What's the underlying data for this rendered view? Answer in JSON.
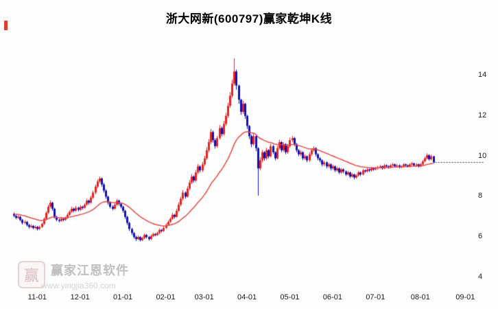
{
  "title": "浙大网新(600797)赢家乾坤K线",
  "watermark": {
    "logo_char": "赢",
    "brand": "赢家江恩软件",
    "url": "www.yingjia360.com"
  },
  "chart_data": {
    "type": "candlestick",
    "name": "浙大网新",
    "symbol": "600797",
    "title": "浙大网新(600797)赢家乾坤K线",
    "xlabel": "",
    "ylabel": "",
    "ylim": [
      4,
      15.8
    ],
    "grid": false,
    "legend_position": "none",
    "y_ticks": [
      4,
      6,
      8,
      10,
      12,
      14
    ],
    "x_ticks": [
      {
        "label": "11-01",
        "i": 11
      },
      {
        "label": "12-01",
        "i": 31
      },
      {
        "label": "01-01",
        "i": 51
      },
      {
        "label": "02-01",
        "i": 71
      },
      {
        "label": "03-01",
        "i": 89
      },
      {
        "label": "04-01",
        "i": 109
      },
      {
        "label": "05-01",
        "i": 129
      },
      {
        "label": "06-01",
        "i": 149
      },
      {
        "label": "07-01",
        "i": 169
      },
      {
        "label": "08-01",
        "i": 190
      },
      {
        "label": "09-01",
        "i": 211
      }
    ],
    "last_price_line": 9.7,
    "ma": {
      "type": "ema",
      "alpha": 0.07
    },
    "colors": {
      "up": "#e62222",
      "down": "#1111b0",
      "ma": "#e64848",
      "price_line": "#333333"
    },
    "candles": [
      [
        7.15,
        7.22,
        6.98,
        7.05
      ],
      [
        7.05,
        7.12,
        6.88,
        6.95
      ],
      [
        6.95,
        7.08,
        6.9,
        7
      ],
      [
        7,
        7.05,
        6.78,
        6.85
      ],
      [
        6.85,
        6.9,
        6.62,
        6.7
      ],
      [
        6.7,
        6.83,
        6.65,
        6.75
      ],
      [
        6.75,
        6.8,
        6.52,
        6.6
      ],
      [
        6.6,
        6.65,
        6.42,
        6.5
      ],
      [
        6.5,
        6.63,
        6.45,
        6.55
      ],
      [
        6.55,
        6.6,
        6.38,
        6.45
      ],
      [
        6.45,
        6.58,
        6.4,
        6.5
      ],
      [
        6.5,
        6.55,
        6.32,
        6.4
      ],
      [
        6.4,
        6.57,
        6.35,
        6.5
      ],
      [
        6.5,
        6.72,
        6.45,
        6.65
      ],
      [
        6.65,
        6.97,
        6.6,
        6.9
      ],
      [
        6.9,
        7.28,
        6.85,
        7.2
      ],
      [
        7.2,
        7.6,
        7.15,
        7.5
      ],
      [
        7.5,
        7.82,
        7.42,
        7.7
      ],
      [
        7.7,
        7.75,
        7.3,
        7.4
      ],
      [
        7.4,
        7.45,
        6.92,
        7
      ],
      [
        7,
        7.06,
        6.78,
        6.85
      ],
      [
        6.85,
        6.92,
        6.72,
        6.8
      ],
      [
        6.8,
        6.98,
        6.75,
        6.9
      ],
      [
        6.9,
        6.95,
        6.78,
        6.85
      ],
      [
        6.85,
        7.02,
        6.8,
        6.95
      ],
      [
        6.95,
        7.18,
        6.9,
        7.1
      ],
      [
        7.1,
        7.33,
        7.05,
        7.25
      ],
      [
        7.25,
        7.5,
        7.2,
        7.4
      ],
      [
        7.4,
        7.46,
        7.22,
        7.3
      ],
      [
        7.3,
        7.53,
        7.25,
        7.45
      ],
      [
        7.45,
        7.5,
        7.27,
        7.35
      ],
      [
        7.35,
        7.58,
        7.3,
        7.5
      ],
      [
        7.5,
        7.55,
        7.36,
        7.45
      ],
      [
        7.45,
        7.68,
        7.4,
        7.6
      ],
      [
        7.6,
        7.9,
        7.55,
        7.8
      ],
      [
        7.8,
        7.86,
        7.6,
        7.7
      ],
      [
        7.7,
        8.05,
        7.65,
        7.95
      ],
      [
        7.95,
        8.3,
        7.88,
        8.2
      ],
      [
        8.2,
        8.6,
        8.12,
        8.5
      ],
      [
        8.5,
        8.85,
        8.42,
        8.75
      ],
      [
        8.75,
        9,
        8.65,
        8.9
      ],
      [
        8.9,
        8.95,
        8.5,
        8.6
      ],
      [
        8.6,
        8.68,
        8.2,
        8.3
      ],
      [
        8.3,
        8.36,
        7.9,
        8
      ],
      [
        8,
        8.05,
        7.6,
        7.7
      ],
      [
        7.7,
        7.76,
        7.42,
        7.5
      ],
      [
        7.5,
        7.58,
        7.32,
        7.4
      ],
      [
        7.4,
        7.68,
        7.35,
        7.6
      ],
      [
        7.6,
        7.88,
        7.55,
        7.8
      ],
      [
        7.8,
        7.85,
        7.56,
        7.65
      ],
      [
        7.65,
        7.7,
        7.42,
        7.5
      ],
      [
        7.5,
        7.55,
        7.2,
        7.3
      ],
      [
        7.3,
        7.35,
        6.9,
        7
      ],
      [
        7,
        7.05,
        6.6,
        6.7
      ],
      [
        6.7,
        6.75,
        6.3,
        6.4
      ],
      [
        6.4,
        6.46,
        6.1,
        6.2
      ],
      [
        6.2,
        6.25,
        5.92,
        6
      ],
      [
        6,
        6.06,
        5.8,
        5.9
      ],
      [
        5.9,
        6.08,
        5.85,
        6
      ],
      [
        6,
        6.04,
        5.78,
        5.85
      ],
      [
        5.85,
        6.02,
        5.8,
        5.95
      ],
      [
        5.95,
        6.17,
        5.9,
        6.1
      ],
      [
        6.1,
        6.15,
        5.93,
        6
      ],
      [
        6,
        6.05,
        5.82,
        5.9
      ],
      [
        5.9,
        6.12,
        5.85,
        6.05
      ],
      [
        6.05,
        6.22,
        6,
        6.15
      ],
      [
        6.15,
        6.2,
        6.03,
        6.1
      ],
      [
        6.1,
        6.27,
        6.05,
        6.2
      ],
      [
        6.2,
        6.42,
        6.15,
        6.35
      ],
      [
        6.35,
        6.4,
        6.22,
        6.3
      ],
      [
        6.3,
        6.52,
        6.25,
        6.45
      ],
      [
        6.45,
        6.68,
        6.4,
        6.6
      ],
      [
        6.6,
        6.83,
        6.55,
        6.75
      ],
      [
        6.75,
        6.98,
        6.7,
        6.9
      ],
      [
        6.9,
        7.2,
        6.85,
        7.1
      ],
      [
        7.1,
        7.15,
        6.92,
        7
      ],
      [
        7,
        7.4,
        6.95,
        7.3
      ],
      [
        7.3,
        7.72,
        7.25,
        7.6
      ],
      [
        7.6,
        8,
        7.52,
        7.9
      ],
      [
        7.9,
        8.32,
        7.82,
        8.2
      ],
      [
        8.2,
        8.26,
        7.9,
        8
      ],
      [
        8,
        8.52,
        7.95,
        8.4
      ],
      [
        8.4,
        8.82,
        8.32,
        8.7
      ],
      [
        8.7,
        9.12,
        8.62,
        9
      ],
      [
        9,
        9.06,
        8.7,
        8.8
      ],
      [
        8.8,
        9.32,
        8.72,
        9.2
      ],
      [
        9.2,
        9.62,
        9.12,
        9.5
      ],
      [
        9.5,
        9.56,
        9.2,
        9.3
      ],
      [
        9.3,
        9.72,
        9.22,
        9.6
      ],
      [
        9.6,
        10.02,
        9.52,
        9.9
      ],
      [
        9.9,
        10.45,
        9.82,
        10.3
      ],
      [
        10.3,
        10.85,
        10.2,
        10.7
      ],
      [
        10.7,
        11.35,
        10.6,
        11.2
      ],
      [
        11.2,
        11.28,
        10.68,
        10.8
      ],
      [
        10.8,
        10.88,
        10.38,
        10.5
      ],
      [
        10.5,
        11,
        10.42,
        10.9
      ],
      [
        10.9,
        11.55,
        10.82,
        11.4
      ],
      [
        11.4,
        11.48,
        10.98,
        11.1
      ],
      [
        11.1,
        11.75,
        11.02,
        11.6
      ],
      [
        11.6,
        12.15,
        11.5,
        12
      ],
      [
        12,
        12.65,
        11.9,
        12.5
      ],
      [
        12.5,
        13.18,
        12.4,
        13
      ],
      [
        13,
        13.8,
        12.9,
        13.6
      ],
      [
        13.6,
        14.85,
        13.5,
        14.2
      ],
      [
        14.2,
        14.3,
        13.3,
        13.5
      ],
      [
        13.5,
        13.55,
        12.6,
        12.8
      ],
      [
        12.8,
        12.85,
        12.05,
        12.2
      ],
      [
        12.2,
        12.75,
        12.1,
        12.6
      ],
      [
        12.6,
        12.65,
        11.85,
        12
      ],
      [
        12,
        12.05,
        11.35,
        11.5
      ],
      [
        11.5,
        11.55,
        10.85,
        11
      ],
      [
        11,
        11.08,
        10.45,
        10.6
      ],
      [
        10.6,
        11.12,
        10.52,
        11
      ],
      [
        11,
        11.05,
        10.25,
        10.4
      ],
      [
        10.4,
        10.45,
        8.05,
        9.4
      ],
      [
        9.4,
        9.95,
        9.3,
        9.8
      ],
      [
        9.8,
        10.32,
        9.7,
        10.2
      ],
      [
        10.2,
        10.26,
        9.78,
        9.9
      ],
      [
        9.9,
        10.42,
        9.82,
        10.3
      ],
      [
        10.3,
        10.36,
        9.9,
        10
      ],
      [
        10,
        10.62,
        9.95,
        10.5
      ],
      [
        10.5,
        10.56,
        10.1,
        10.2
      ],
      [
        10.2,
        10.25,
        9.8,
        9.9
      ],
      [
        9.9,
        10.52,
        9.85,
        10.4
      ],
      [
        10.4,
        10.82,
        10.32,
        10.7
      ],
      [
        10.7,
        10.75,
        10.2,
        10.3
      ],
      [
        10.3,
        10.7,
        10.22,
        10.6
      ],
      [
        10.6,
        10.65,
        10.1,
        10.2
      ],
      [
        10.2,
        10.62,
        10.12,
        10.5
      ],
      [
        10.5,
        10.92,
        10.42,
        10.8
      ],
      [
        10.8,
        11,
        10.7,
        10.9
      ],
      [
        10.9,
        10.95,
        10.5,
        10.6
      ],
      [
        10.6,
        10.66,
        10.2,
        10.3
      ],
      [
        10.3,
        10.36,
        10,
        10.1
      ],
      [
        10.1,
        10.3,
        10.02,
        10.2
      ],
      [
        10.2,
        10.25,
        9.8,
        9.9
      ],
      [
        9.9,
        10.1,
        9.82,
        10
      ],
      [
        10,
        10.05,
        9.7,
        9.8
      ],
      [
        9.8,
        10.2,
        9.72,
        10.1
      ],
      [
        10.1,
        10.4,
        10.02,
        10.3
      ],
      [
        10.3,
        10.5,
        10.22,
        10.4
      ],
      [
        10.4,
        10.45,
        10,
        10.1
      ],
      [
        10.1,
        10.15,
        9.8,
        9.9
      ],
      [
        9.9,
        9.96,
        9.7,
        9.8
      ],
      [
        9.8,
        9.85,
        9.5,
        9.6
      ],
      [
        9.6,
        9.78,
        9.52,
        9.7
      ],
      [
        9.7,
        9.75,
        9.4,
        9.5
      ],
      [
        9.5,
        9.68,
        9.42,
        9.6
      ],
      [
        9.6,
        9.65,
        9.3,
        9.4
      ],
      [
        9.4,
        9.58,
        9.32,
        9.5
      ],
      [
        9.5,
        9.55,
        9.22,
        9.3
      ],
      [
        9.3,
        9.48,
        9.24,
        9.4
      ],
      [
        9.4,
        9.45,
        9.12,
        9.2
      ],
      [
        9.2,
        9.42,
        9.14,
        9.35
      ],
      [
        9.35,
        9.4,
        9.16,
        9.25
      ],
      [
        9.25,
        9.3,
        9.02,
        9.1
      ],
      [
        9.1,
        9.28,
        9.04,
        9.2
      ],
      [
        9.2,
        9.24,
        8.92,
        9
      ],
      [
        9,
        9.18,
        8.94,
        9.1
      ],
      [
        9.1,
        9.14,
        8.86,
        8.95
      ],
      [
        8.95,
        9.12,
        8.88,
        9.05
      ],
      [
        9.05,
        9.28,
        9,
        9.2
      ],
      [
        9.2,
        9.25,
        9.02,
        9.1
      ],
      [
        9.1,
        9.38,
        9.05,
        9.3
      ],
      [
        9.3,
        9.35,
        9.18,
        9.25
      ],
      [
        9.25,
        9.42,
        9.2,
        9.35
      ],
      [
        9.35,
        9.4,
        9.22,
        9.3
      ],
      [
        9.3,
        9.47,
        9.24,
        9.4
      ],
      [
        9.4,
        9.45,
        9.28,
        9.35
      ],
      [
        9.35,
        9.48,
        9.3,
        9.4
      ],
      [
        9.4,
        9.52,
        9.34,
        9.45
      ],
      [
        9.45,
        9.57,
        9.4,
        9.5
      ],
      [
        9.5,
        9.54,
        9.34,
        9.4
      ],
      [
        9.4,
        9.62,
        9.36,
        9.55
      ],
      [
        9.55,
        9.6,
        9.44,
        9.5
      ],
      [
        9.5,
        9.55,
        9.38,
        9.45
      ],
      [
        9.45,
        9.62,
        9.4,
        9.55
      ],
      [
        9.55,
        9.67,
        9.5,
        9.6
      ],
      [
        9.6,
        9.64,
        9.44,
        9.5
      ],
      [
        9.5,
        9.62,
        9.46,
        9.55
      ],
      [
        9.55,
        9.6,
        9.4,
        9.45
      ],
      [
        9.45,
        9.56,
        9.4,
        9.5
      ],
      [
        9.5,
        9.66,
        9.45,
        9.6
      ],
      [
        9.6,
        9.64,
        9.48,
        9.55
      ],
      [
        9.55,
        9.6,
        9.44,
        9.5
      ],
      [
        9.5,
        9.66,
        9.46,
        9.6
      ],
      [
        9.6,
        9.72,
        9.54,
        9.65
      ],
      [
        9.65,
        9.68,
        9.5,
        9.55
      ],
      [
        9.55,
        9.66,
        9.5,
        9.6
      ],
      [
        9.6,
        9.64,
        9.44,
        9.5
      ],
      [
        9.5,
        9.68,
        9.46,
        9.6
      ],
      [
        9.6,
        9.82,
        9.54,
        9.75
      ],
      [
        9.75,
        9.98,
        9.7,
        9.9
      ],
      [
        9.9,
        10.15,
        9.84,
        10.05
      ],
      [
        10.05,
        10.1,
        9.78,
        9.85
      ],
      [
        9.85,
        10.08,
        9.8,
        10
      ],
      [
        10,
        10.02,
        9.65,
        9.7
      ]
    ]
  }
}
